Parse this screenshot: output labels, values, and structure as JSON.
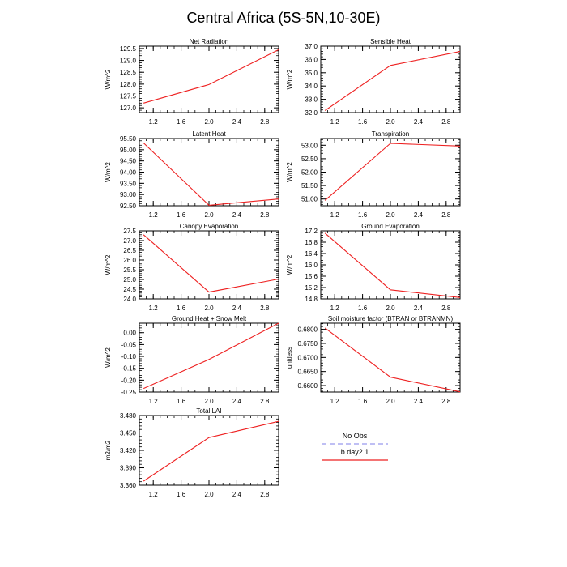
{
  "figure": {
    "title": "Central Africa (5S-5N,10-30E)"
  },
  "legend": {
    "entries": [
      {
        "label": "No Obs",
        "color": "#9999ee",
        "dashed": true
      },
      {
        "label": "b.day2.1",
        "color": "#ee2222",
        "dashed": false
      }
    ]
  },
  "chart_data": [
    {
      "type": "line",
      "title": "Net Radiation",
      "ylabel": "W/m^2",
      "xlim": [
        1.0,
        3.0
      ],
      "ylim": [
        126.8,
        129.6
      ],
      "xticks": [
        1.2,
        1.6,
        2.0,
        2.4,
        2.8
      ],
      "xtick_labels": [
        "1.2",
        "1.6",
        "2.0",
        "2.4",
        "2.8"
      ],
      "yticks": [
        127.0,
        127.5,
        128.0,
        128.5,
        129.0,
        129.5
      ],
      "ytick_labels": [
        "127.0",
        "127.5",
        "128.0",
        "128.5",
        "129.0",
        "129.5"
      ],
      "series": [
        {
          "name": "b.day2.1",
          "x": [
            1.06,
            2.0,
            3.0
          ],
          "y": [
            127.2,
            127.98,
            129.45
          ]
        }
      ]
    },
    {
      "type": "line",
      "title": "Sensible Heat",
      "ylabel": "W/m^2",
      "xlim": [
        1.0,
        3.0
      ],
      "ylim": [
        32.0,
        37.0
      ],
      "xticks": [
        1.2,
        1.6,
        2.0,
        2.4,
        2.8
      ],
      "xtick_labels": [
        "1.2",
        "1.6",
        "2.0",
        "2.4",
        "2.8"
      ],
      "yticks": [
        32.0,
        33.0,
        34.0,
        35.0,
        36.0,
        37.0
      ],
      "ytick_labels": [
        "32.0",
        "33.0",
        "34.0",
        "35.0",
        "36.0",
        "37.0"
      ],
      "series": [
        {
          "name": "b.day2.1",
          "x": [
            1.06,
            2.0,
            3.0
          ],
          "y": [
            32.15,
            35.55,
            36.6
          ]
        }
      ]
    },
    {
      "type": "line",
      "title": "Latent Heat",
      "ylabel": "W/m^2",
      "xlim": [
        1.0,
        3.0
      ],
      "ylim": [
        92.5,
        95.5
      ],
      "xticks": [
        1.2,
        1.6,
        2.0,
        2.4,
        2.8
      ],
      "xtick_labels": [
        "1.2",
        "1.6",
        "2.0",
        "2.4",
        "2.8"
      ],
      "yticks": [
        92.5,
        93.0,
        93.5,
        94.0,
        94.5,
        95.0,
        95.5
      ],
      "ytick_labels": [
        "92.50",
        "93.00",
        "93.50",
        "94.00",
        "94.50",
        "95.00",
        "95.50"
      ],
      "series": [
        {
          "name": "b.day2.1",
          "x": [
            1.06,
            2.0,
            3.0
          ],
          "y": [
            95.3,
            92.52,
            92.8
          ]
        }
      ]
    },
    {
      "type": "line",
      "title": "Transpiration",
      "ylabel": "W/m^2",
      "xlim": [
        1.0,
        3.0
      ],
      "ylim": [
        50.75,
        53.25
      ],
      "xticks": [
        1.2,
        1.6,
        2.0,
        2.4,
        2.8
      ],
      "xtick_labels": [
        "1.2",
        "1.6",
        "2.0",
        "2.4",
        "2.8"
      ],
      "yticks": [
        51.0,
        51.5,
        52.0,
        52.5,
        53.0
      ],
      "ytick_labels": [
        "51.00",
        "51.50",
        "52.00",
        "52.50",
        "53.00"
      ],
      "series": [
        {
          "name": "b.day2.1",
          "x": [
            1.06,
            2.0,
            3.0
          ],
          "y": [
            50.95,
            53.07,
            52.97
          ]
        }
      ]
    },
    {
      "type": "line",
      "title": "Canopy Evaporation",
      "ylabel": "W/m^2",
      "xlim": [
        1.0,
        3.0
      ],
      "ylim": [
        24.0,
        27.5
      ],
      "xticks": [
        1.2,
        1.6,
        2.0,
        2.4,
        2.8
      ],
      "xtick_labels": [
        "1.2",
        "1.6",
        "2.0",
        "2.4",
        "2.8"
      ],
      "yticks": [
        24.0,
        24.5,
        25.0,
        25.5,
        26.0,
        26.5,
        27.0,
        27.5
      ],
      "ytick_labels": [
        "24.0",
        "24.5",
        "25.0",
        "25.5",
        "26.0",
        "26.5",
        "27.0",
        "27.5"
      ],
      "series": [
        {
          "name": "b.day2.1",
          "x": [
            1.06,
            2.0,
            3.0
          ],
          "y": [
            27.3,
            24.35,
            25.02
          ]
        }
      ]
    },
    {
      "type": "line",
      "title": "Ground Evaporation",
      "ylabel": "W/m^2",
      "xlim": [
        1.0,
        3.0
      ],
      "ylim": [
        14.8,
        17.2
      ],
      "xticks": [
        1.2,
        1.6,
        2.0,
        2.4,
        2.8
      ],
      "xtick_labels": [
        "1.2",
        "1.6",
        "2.0",
        "2.4",
        "2.8"
      ],
      "yticks": [
        14.8,
        15.2,
        15.6,
        16.0,
        16.4,
        16.8,
        17.2
      ],
      "ytick_labels": [
        "14.8",
        "15.2",
        "15.6",
        "16.0",
        "16.4",
        "16.8",
        "17.2"
      ],
      "series": [
        {
          "name": "b.day2.1",
          "x": [
            1.06,
            2.0,
            3.0
          ],
          "y": [
            17.12,
            15.12,
            14.85
          ]
        }
      ]
    },
    {
      "type": "line",
      "title": "Ground Heat + Snow Melt",
      "ylabel": "W/m^2",
      "xlim": [
        1.0,
        3.0
      ],
      "ylim": [
        -0.25,
        0.04
      ],
      "xticks": [
        1.2,
        1.6,
        2.0,
        2.4,
        2.8
      ],
      "xtick_labels": [
        "1.2",
        "1.6",
        "2.0",
        "2.4",
        "2.8"
      ],
      "yticks": [
        -0.25,
        -0.2,
        -0.15,
        -0.1,
        -0.05,
        0.0
      ],
      "ytick_labels": [
        "-0.25",
        "-0.20",
        "-0.15",
        "-0.10",
        "-0.05",
        "0.00"
      ],
      "series": [
        {
          "name": "b.day2.1",
          "x": [
            1.06,
            2.0,
            3.0
          ],
          "y": [
            -0.235,
            -0.113,
            0.04
          ]
        }
      ]
    },
    {
      "type": "line",
      "title": "Soil moisture factor (BTRAN or BTRANMN)",
      "ylabel": "unitless",
      "xlim": [
        1.0,
        3.0
      ],
      "ylim": [
        0.6577,
        0.6822
      ],
      "xticks": [
        1.2,
        1.6,
        2.0,
        2.4,
        2.8
      ],
      "xtick_labels": [
        "1.2",
        "1.6",
        "2.0",
        "2.4",
        "2.8"
      ],
      "yticks": [
        0.66,
        0.665,
        0.67,
        0.675,
        0.68
      ],
      "ytick_labels": [
        "0.6600",
        "0.6650",
        "0.6700",
        "0.6750",
        "0.6800"
      ],
      "series": [
        {
          "name": "b.day2.1",
          "x": [
            1.06,
            2.0,
            3.0
          ],
          "y": [
            0.6805,
            0.663,
            0.6578
          ]
        }
      ]
    },
    {
      "type": "line",
      "title": "Total LAI",
      "ylabel": "m2/m2",
      "xlim": [
        1.0,
        3.0
      ],
      "ylim": [
        3.36,
        3.48
      ],
      "xticks": [
        1.2,
        1.6,
        2.0,
        2.4,
        2.8
      ],
      "xtick_labels": [
        "1.2",
        "1.6",
        "2.0",
        "2.4",
        "2.8"
      ],
      "yticks": [
        3.36,
        3.39,
        3.42,
        3.45,
        3.48
      ],
      "ytick_labels": [
        "3.360",
        "3.390",
        "3.420",
        "3.450",
        "3.480"
      ],
      "series": [
        {
          "name": "b.day2.1",
          "x": [
            1.06,
            2.0,
            3.0
          ],
          "y": [
            3.367,
            3.442,
            3.47
          ]
        }
      ]
    }
  ]
}
